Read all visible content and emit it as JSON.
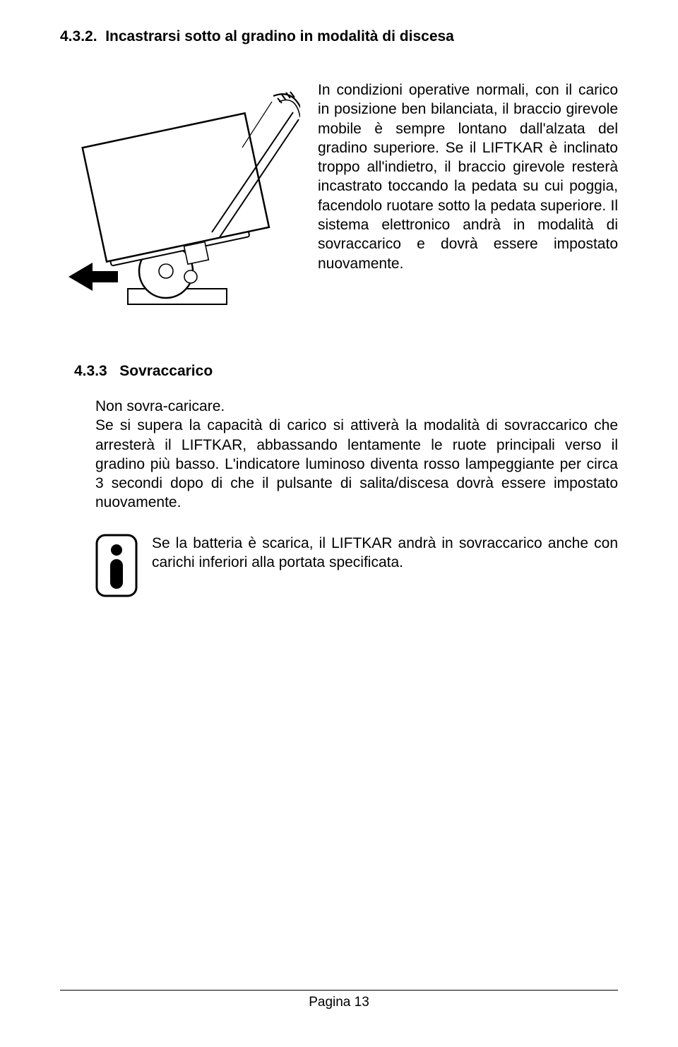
{
  "section": {
    "number": "4.3.2.",
    "title": "Incastrarsi sotto al gradino in modalità di discesa"
  },
  "figure": {
    "stroke": "#000000",
    "fill": "#ffffff",
    "line_w_thick": 2.5,
    "line_w_thin": 1.6
  },
  "paragraph1": "In condizioni operative normali, con il carico in posizione ben bilanciata, il braccio girevole mobile è sempre lontano dall'alzata del gradino superiore. Se il LIFTKAR è inclinato troppo all'indietro, il braccio girevole resterà incastrato toccando la pedata su cui poggia, facendolo ruotare sotto la pedata superiore. Il sistema elettronico andrà in modalità di sovraccarico e dovrà essere impostato nuovamente.",
  "subsection": {
    "number": "4.3.3",
    "title": "Sovraccarico"
  },
  "paragraph2": "Non sovra-caricare.\nSe si supera la capacità di carico si attiverà la modalità di sovraccarico che arresterà il LIFTKAR, abbassando lentamente le ruote principali verso il gradino più basso. L'indicatore luminoso diventa rosso lampeggiante per circa 3 secondi dopo di che il pulsante di salita/discesa dovrà essere impostato nuovamente.",
  "info_text": "Se la batteria è scarica, il LIFTKAR andrà in sovraccarico anche con carichi inferiori alla portata specificata.",
  "footer": "Pagina 13"
}
